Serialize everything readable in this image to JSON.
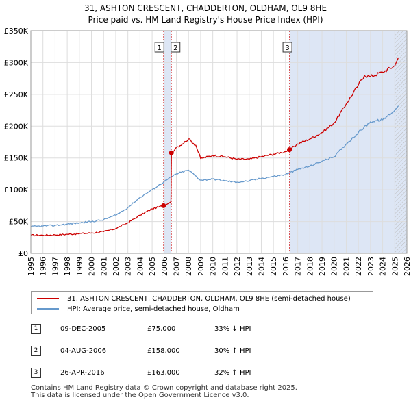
{
  "title_line1": "31, ASHTON CRESCENT, CHADDERTON, OLDHAM, OL9 8HE",
  "title_line2": "Price paid vs. HM Land Registry's House Price Index (HPI)",
  "colors": {
    "property": "#cc0000",
    "hpi": "#6699cc",
    "sale_marker": "#cc0000",
    "shade": "#dde6f5"
  },
  "chart_data": {
    "type": "line",
    "xlabel": "",
    "ylabel": "",
    "xlim": [
      1995,
      2026
    ],
    "ylim": [
      0,
      350000
    ],
    "y_ticks": [
      0,
      50000,
      100000,
      150000,
      200000,
      250000,
      300000,
      350000
    ],
    "y_tick_labels": [
      "£0",
      "£50K",
      "£100K",
      "£150K",
      "£200K",
      "£250K",
      "£300K",
      "£350K"
    ],
    "x_ticks": [
      1995,
      1996,
      1997,
      1998,
      1999,
      2000,
      2001,
      2002,
      2003,
      2004,
      2005,
      2006,
      2007,
      2008,
      2009,
      2010,
      2011,
      2012,
      2013,
      2014,
      2015,
      2016,
      2017,
      2018,
      2019,
      2020,
      2021,
      2022,
      2023,
      2024,
      2025,
      2026
    ],
    "grid": true,
    "shaded_regions": [
      [
        2005.94,
        2006.59
      ],
      [
        2016.32,
        2026
      ]
    ],
    "hatched_from": 2025.0,
    "series": [
      {
        "name": "31, ASHTON CRESCENT, CHADDERTON, OLDHAM, OL9 8HE (semi-detached house)",
        "x": [
          1995,
          1996,
          1997,
          1998,
          1999,
          2000,
          2001,
          2002,
          2003,
          2004,
          2005,
          2005.94,
          2006.0,
          2006.3,
          2006.55,
          2006.59,
          2007,
          2007.5,
          2008,
          2008.6,
          2009,
          2010,
          2011,
          2012,
          2013,
          2014,
          2015,
          2016,
          2016.32,
          2017,
          2018,
          2019,
          2020,
          2021,
          2022,
          2022.5,
          2023,
          2024,
          2025,
          2025.3
        ],
        "values": [
          28500,
          28500,
          29000,
          30000,
          31000,
          32000,
          34000,
          39000,
          48000,
          60000,
          70000,
          75000,
          75000,
          78000,
          81000,
          158000,
          167000,
          172000,
          180000,
          170000,
          149000,
          154000,
          152000,
          148000,
          148000,
          152000,
          156000,
          160000,
          163000,
          172000,
          180000,
          190000,
          205000,
          235000,
          265000,
          280000,
          278000,
          285000,
          295000,
          308000
        ]
      },
      {
        "name": "HPI: Average price, semi-detached house, Oldham",
        "x": [
          1995,
          1996,
          1997,
          1998,
          1999,
          2000,
          2001,
          2002,
          2003,
          2004,
          2005,
          2006,
          2007,
          2008,
          2009,
          2010,
          2011,
          2012,
          2013,
          2014,
          2015,
          2016,
          2017,
          2018,
          2019,
          2020,
          2021,
          2022,
          2023,
          2024,
          2025,
          2025.3
        ],
        "values": [
          42000,
          43000,
          44000,
          46000,
          48000,
          50000,
          53000,
          60000,
          72000,
          88000,
          100000,
          113000,
          125000,
          131000,
          115000,
          117000,
          114000,
          112000,
          114000,
          118000,
          121000,
          124000,
          132000,
          137000,
          145000,
          152000,
          172000,
          190000,
          207000,
          210000,
          225000,
          232000
        ]
      }
    ],
    "sales": [
      {
        "label": "1",
        "x": 2005.94,
        "value": 75000
      },
      {
        "label": "2",
        "x": 2006.59,
        "value": 158000
      },
      {
        "label": "3",
        "x": 2016.32,
        "value": 163000
      }
    ]
  },
  "legend": {
    "property": "31, ASHTON CRESCENT, CHADDERTON, OLDHAM, OL9 8HE (semi-detached house)",
    "hpi": "HPI: Average price, semi-detached house, Oldham"
  },
  "transactions": [
    {
      "num": "1",
      "date": "09-DEC-2005",
      "price": "£75,000",
      "hpi": "33% ↓ HPI"
    },
    {
      "num": "2",
      "date": "04-AUG-2006",
      "price": "£158,000",
      "hpi": "30% ↑ HPI"
    },
    {
      "num": "3",
      "date": "26-APR-2016",
      "price": "£163,000",
      "hpi": "32% ↑ HPI"
    }
  ],
  "footer_line1": "Contains HM Land Registry data © Crown copyright and database right 2025.",
  "footer_line2": "This data is licensed under the Open Government Licence v3.0."
}
